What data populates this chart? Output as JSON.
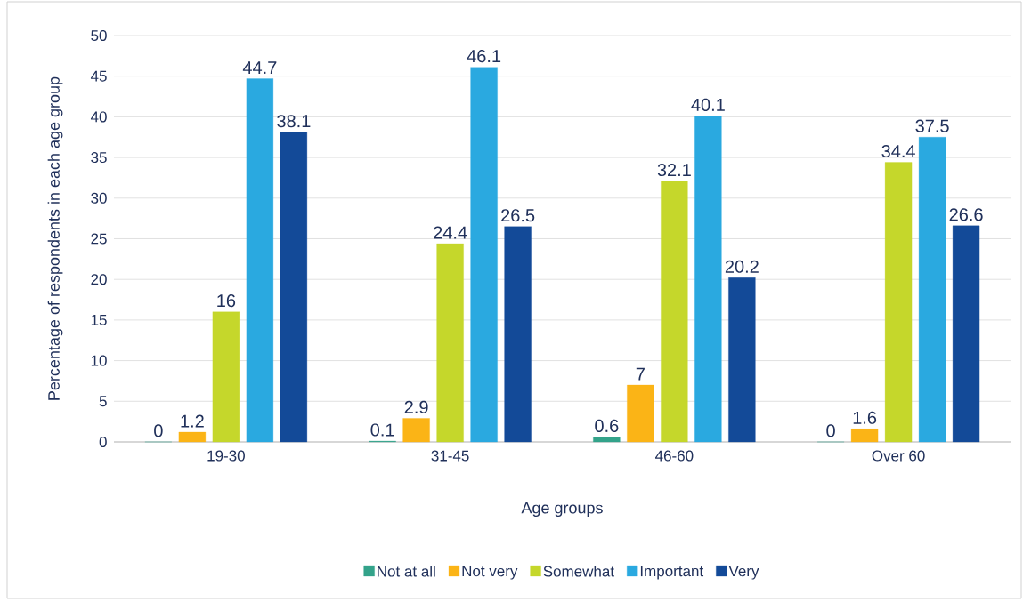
{
  "chart_data": {
    "type": "bar",
    "xlabel": "Age groups",
    "ylabel": "Percentage of respondents in each age group",
    "categories": [
      "19-30",
      "31-45",
      "46-60",
      "Over 60"
    ],
    "series": [
      {
        "name": "Not at all",
        "color": "#33a38a",
        "values": [
          0,
          0.1,
          0.6,
          0
        ]
      },
      {
        "name": "Not very",
        "color": "#fbb416",
        "values": [
          1.2,
          2.9,
          7,
          1.6
        ]
      },
      {
        "name": "Somewhat",
        "color": "#c5d72b",
        "values": [
          16,
          24.4,
          32.1,
          34.4
        ]
      },
      {
        "name": "Important",
        "color": "#2aa9e0",
        "values": [
          44.7,
          46.1,
          40.1,
          37.5
        ]
      },
      {
        "name": "Very",
        "color": "#134a98",
        "values": [
          38.1,
          26.5,
          20.2,
          26.6
        ]
      }
    ],
    "ylim": [
      0,
      50
    ],
    "yticks": [
      0,
      5,
      10,
      15,
      20,
      25,
      30,
      35,
      40,
      45,
      50
    ],
    "grid": "y",
    "legend": "bottom",
    "data_labels": true
  }
}
